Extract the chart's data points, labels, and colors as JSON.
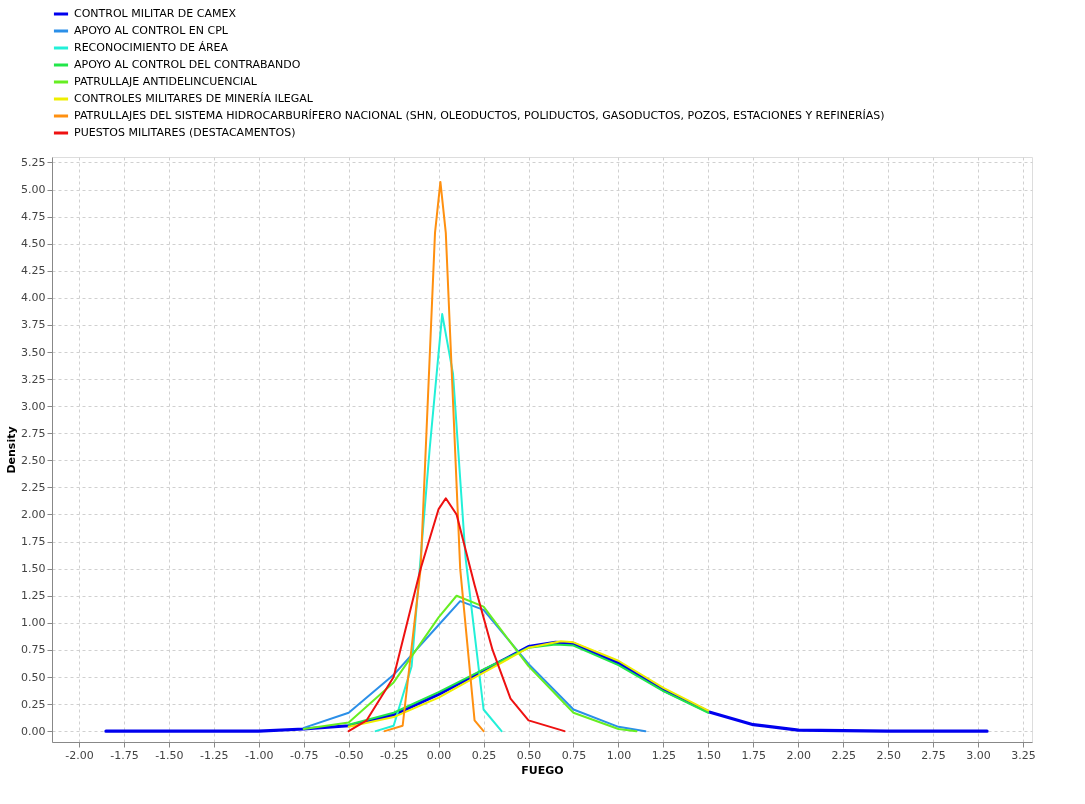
{
  "chart_data": {
    "type": "line",
    "xlabel": "FUEGO",
    "ylabel": "Density",
    "xlim": [
      -2.15,
      3.3
    ],
    "ylim": [
      -0.1,
      5.3
    ],
    "xticks": [
      {
        "value": -2.0,
        "label": "-2.00"
      },
      {
        "value": -1.75,
        "label": "-1.75"
      },
      {
        "value": -1.5,
        "label": "-1.50"
      },
      {
        "value": -1.25,
        "label": "-1.25"
      },
      {
        "value": -1.0,
        "label": "-1.00"
      },
      {
        "value": -0.75,
        "label": "-0.75"
      },
      {
        "value": -0.5,
        "label": "-0.50"
      },
      {
        "value": -0.25,
        "label": "-0.25"
      },
      {
        "value": 0.0,
        "label": "0.00"
      },
      {
        "value": 0.25,
        "label": "0.25"
      },
      {
        "value": 0.5,
        "label": "0.50"
      },
      {
        "value": 0.75,
        "label": "0.75"
      },
      {
        "value": 1.0,
        "label": "1.00"
      },
      {
        "value": 1.25,
        "label": "1.25"
      },
      {
        "value": 1.5,
        "label": "1.50"
      },
      {
        "value": 1.75,
        "label": "1.75"
      },
      {
        "value": 2.0,
        "label": "2.00"
      },
      {
        "value": 2.25,
        "label": "2.25"
      },
      {
        "value": 2.5,
        "label": "2.50"
      },
      {
        "value": 2.75,
        "label": "2.75"
      },
      {
        "value": 3.0,
        "label": "3.00"
      },
      {
        "value": 3.25,
        "label": "3.25"
      }
    ],
    "yticks": [
      {
        "value": 0.0,
        "label": "0.00"
      },
      {
        "value": 0.25,
        "label": "0.25"
      },
      {
        "value": 0.5,
        "label": "0.50"
      },
      {
        "value": 0.75,
        "label": "0.75"
      },
      {
        "value": 1.0,
        "label": "1.00"
      },
      {
        "value": 1.25,
        "label": "1.25"
      },
      {
        "value": 1.5,
        "label": "1.50"
      },
      {
        "value": 1.75,
        "label": "1.75"
      },
      {
        "value": 2.0,
        "label": "2.00"
      },
      {
        "value": 2.25,
        "label": "2.25"
      },
      {
        "value": 2.5,
        "label": "2.50"
      },
      {
        "value": 2.75,
        "label": "2.75"
      },
      {
        "value": 3.0,
        "label": "3.00"
      },
      {
        "value": 3.25,
        "label": "3.25"
      },
      {
        "value": 3.5,
        "label": "3.50"
      },
      {
        "value": 3.75,
        "label": "3.75"
      },
      {
        "value": 4.0,
        "label": "4.00"
      },
      {
        "value": 4.25,
        "label": "4.25"
      },
      {
        "value": 4.5,
        "label": "4.50"
      },
      {
        "value": 4.75,
        "label": "4.75"
      },
      {
        "value": 5.0,
        "label": "5.00"
      },
      {
        "value": 5.25,
        "label": "5.25"
      }
    ],
    "grid": true,
    "legend": "top",
    "line_style": "solid",
    "series": [
      {
        "name": "CONTROL MILITAR DE CAMEX",
        "color": "#0000ee",
        "x": [
          -1.85,
          -1.0,
          -0.75,
          -0.5,
          -0.25,
          0.0,
          0.25,
          0.5,
          0.65,
          0.75,
          1.0,
          1.25,
          1.5,
          1.75,
          2.0,
          2.5,
          3.05
        ],
        "values": [
          0.0,
          0.0,
          0.02,
          0.05,
          0.15,
          0.34,
          0.56,
          0.78,
          0.82,
          0.81,
          0.63,
          0.38,
          0.18,
          0.06,
          0.01,
          0.0,
          0.0
        ]
      },
      {
        "name": "APOYO AL CONTROL EN CPL",
        "color": "#2b8fe8",
        "x": [
          -0.75,
          -0.5,
          -0.25,
          0.0,
          0.12,
          0.25,
          0.5,
          0.75,
          1.0,
          1.15
        ],
        "values": [
          0.03,
          0.17,
          0.52,
          0.98,
          1.2,
          1.12,
          0.62,
          0.2,
          0.04,
          0.0
        ]
      },
      {
        "name": "RECONOCIMIENTO DE ÁREA",
        "color": "#22f0d8",
        "x": [
          -0.35,
          -0.25,
          -0.15,
          -0.05,
          0.02,
          0.08,
          0.15,
          0.25,
          0.35
        ],
        "values": [
          0.0,
          0.05,
          0.6,
          2.6,
          3.85,
          3.3,
          1.6,
          0.2,
          0.0
        ]
      },
      {
        "name": "APOYO AL CONTROL DEL CONTRABANDO",
        "color": "#22e64a",
        "x": [
          -0.5,
          -0.25,
          0.0,
          0.25,
          0.5,
          0.65,
          0.75,
          1.0,
          1.25,
          1.5
        ],
        "values": [
          0.06,
          0.17,
          0.36,
          0.57,
          0.77,
          0.8,
          0.79,
          0.61,
          0.37,
          0.17
        ]
      },
      {
        "name": "PATRULLAJE ANTIDELINCUENCIAL",
        "color": "#66ee22",
        "x": [
          -0.75,
          -0.5,
          -0.25,
          0.0,
          0.1,
          0.25,
          0.5,
          0.75,
          1.0,
          1.1
        ],
        "values": [
          0.02,
          0.08,
          0.45,
          1.05,
          1.25,
          1.15,
          0.6,
          0.17,
          0.02,
          0.0
        ]
      },
      {
        "name": "CONTROLES MILITARES DE MINERÍA ILEGAL",
        "color": "#eeee00",
        "x": [
          -0.5,
          -0.25,
          0.0,
          0.25,
          0.5,
          0.68,
          0.75,
          1.0,
          1.25,
          1.5
        ],
        "values": [
          0.04,
          0.13,
          0.31,
          0.54,
          0.77,
          0.83,
          0.82,
          0.65,
          0.4,
          0.19
        ]
      },
      {
        "name": "PATRULLAJES DEL SISTEMA HIDROCARBURÍFERO NACIONAL (SHN, OLEODUCTOS, POLIDUCTOS, GASODUCTOS, POZOS, ESTACIONES Y REFINERÍAS)",
        "color": "#ff9010",
        "x": [
          -0.3,
          -0.2,
          -0.1,
          -0.02,
          0.01,
          0.04,
          0.12,
          0.2,
          0.25
        ],
        "values": [
          0.0,
          0.05,
          1.5,
          4.6,
          5.07,
          4.6,
          1.5,
          0.1,
          0.0
        ]
      },
      {
        "name": "PUESTOS MILITARES (DESTACAMENTOS)",
        "color": "#ee1111",
        "x": [
          -0.5,
          -0.4,
          -0.25,
          -0.1,
          0.0,
          0.04,
          0.1,
          0.2,
          0.3,
          0.4,
          0.5,
          0.7
        ],
        "values": [
          0.0,
          0.1,
          0.5,
          1.5,
          2.05,
          2.15,
          2.0,
          1.35,
          0.75,
          0.3,
          0.1,
          0.0
        ]
      }
    ]
  }
}
